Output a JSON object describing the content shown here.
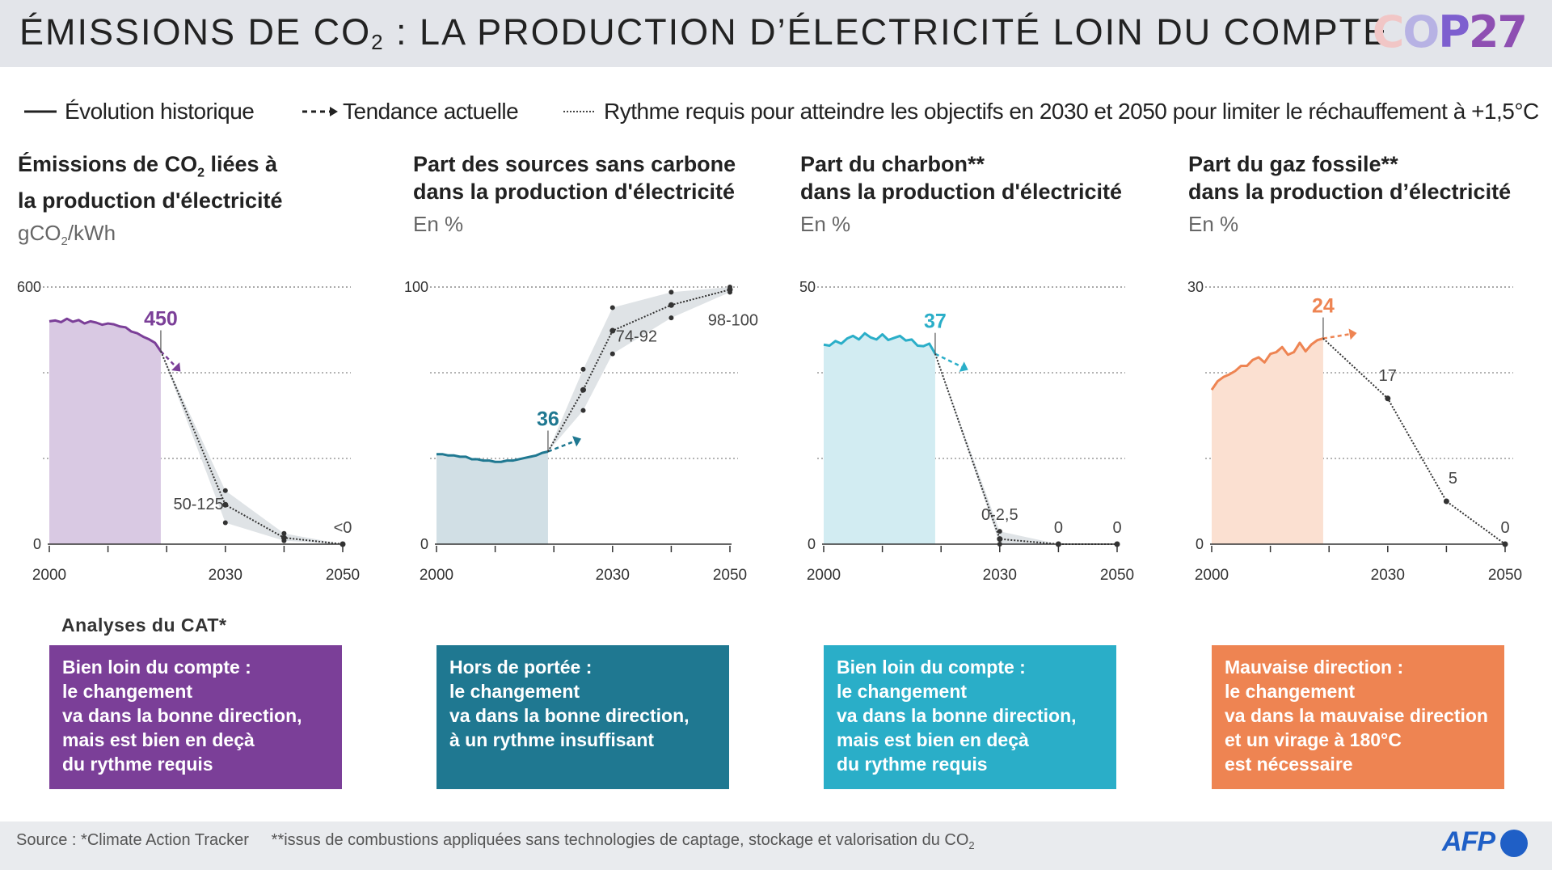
{
  "header": {
    "title_pre": "ÉMISSIONS DE CO",
    "title_sub": "2",
    "title_post": " : LA PRODUCTION D’ÉLECTRICITÉ LOIN DU COMPTE",
    "logo_cop": "COP",
    "logo_year": "27"
  },
  "legend": {
    "historic": "Évolution historique",
    "trend": "Tendance actuelle",
    "required": "Rythme requis pour atteindre les objectifs en 2030 et 2050 pour limiter le réchauffement à +1,5°C"
  },
  "panels": [
    {
      "title1_pre": "Émissions de CO",
      "title1_sub": "2",
      "title1_post": " liées à",
      "title2": "la production d'électricité",
      "unit_pre": "gCO",
      "unit_sub": "2",
      "unit_post": "/kWh"
    },
    {
      "title1_pre": "Part des sources sans carbone",
      "title1_sub": "",
      "title1_post": "",
      "title2": "dans la production d'électricité",
      "unit_pre": "En %",
      "unit_sub": "",
      "unit_post": ""
    },
    {
      "title1_pre": "Part du charbon**",
      "title1_sub": "",
      "title1_post": "",
      "title2": "dans la production d'électricité",
      "unit_pre": "En %",
      "unit_sub": "",
      "unit_post": ""
    },
    {
      "title1_pre": "Part du gaz fossile**",
      "title1_sub": "",
      "title1_post": "",
      "title2": "dans la production d’électricité",
      "unit_pre": "En %",
      "unit_sub": "",
      "unit_post": ""
    }
  ],
  "chart_data": [
    {
      "type": "area",
      "color": "#7b3f98",
      "fill": "#d9c9e3",
      "ylim": [
        0,
        600
      ],
      "yticks": [
        0,
        600
      ],
      "xlim": [
        2000,
        2050
      ],
      "xticks": [
        2000,
        2030,
        2050
      ],
      "historic": {
        "x": [
          2000,
          2001,
          2002,
          2003,
          2004,
          2005,
          2006,
          2007,
          2008,
          2009,
          2010,
          2011,
          2012,
          2013,
          2014,
          2015,
          2016,
          2017,
          2018,
          2019
        ],
        "y": [
          520,
          522,
          518,
          526,
          519,
          523,
          515,
          520,
          517,
          512,
          515,
          513,
          508,
          506,
          496,
          492,
          484,
          478,
          470,
          450
        ]
      },
      "current_value": "450",
      "trend_end": {
        "x": 2021.5,
        "y": 415
      },
      "required": {
        "x": [
          2019,
          2030,
          2040,
          2050
        ],
        "y": [
          450,
          92,
          15,
          0
        ]
      },
      "band": {
        "x": [
          2019,
          2030,
          2040,
          2050
        ],
        "low": [
          450,
          50,
          8,
          0
        ],
        "high": [
          450,
          125,
          25,
          0
        ]
      },
      "labels": [
        {
          "text": "50-125",
          "x": 2030,
          "y": 85
        },
        {
          "text": "<0",
          "x": 2050,
          "y": 0
        }
      ]
    },
    {
      "type": "area",
      "color": "#1f7891",
      "fill": "#d1dfe5",
      "ylim": [
        0,
        100
      ],
      "yticks": [
        0,
        100
      ],
      "xlim": [
        2000,
        2050
      ],
      "xticks": [
        2000,
        2030,
        2050
      ],
      "historic": {
        "x": [
          2000,
          2001,
          2002,
          2003,
          2004,
          2005,
          2006,
          2007,
          2008,
          2009,
          2010,
          2011,
          2012,
          2013,
          2014,
          2015,
          2016,
          2017,
          2018,
          2019
        ],
        "y": [
          35,
          35,
          34.5,
          34.5,
          34,
          34,
          33,
          33,
          32.5,
          32.5,
          32,
          32,
          32.5,
          32.5,
          33,
          33.5,
          34,
          34.5,
          35.5,
          36
        ]
      },
      "current_value": "36",
      "trend_end": {
        "x": 2023.5,
        "y": 40
      },
      "required": {
        "x": [
          2019,
          2025,
          2030,
          2040,
          2050
        ],
        "y": [
          36,
          60,
          83,
          93,
          99
        ]
      },
      "band": {
        "x": [
          2019,
          2025,
          2030,
          2040,
          2050
        ],
        "low": [
          36,
          52,
          74,
          88,
          98
        ],
        "high": [
          36,
          68,
          92,
          98,
          100
        ]
      },
      "labels": [
        {
          "text": "74-92",
          "x": 2030,
          "y": 80
        },
        {
          "text": "98-100",
          "x": 2050,
          "y": 92
        }
      ]
    },
    {
      "type": "area",
      "color": "#2aaec8",
      "fill": "#d2ecf2",
      "ylim": [
        0,
        50
      ],
      "yticks": [
        0,
        50
      ],
      "xlim": [
        2000,
        2050
      ],
      "xticks": [
        2000,
        2030,
        2050
      ],
      "historic": {
        "x": [
          2000,
          2001,
          2002,
          2003,
          2004,
          2005,
          2006,
          2007,
          2008,
          2009,
          2010,
          2011,
          2012,
          2013,
          2014,
          2015,
          2016,
          2017,
          2018,
          2019
        ],
        "y": [
          38.8,
          38.6,
          39.5,
          39,
          40,
          40.5,
          39.8,
          41,
          40.2,
          39.8,
          40.8,
          39.7,
          40.1,
          40.5,
          39.6,
          39.8,
          38.6,
          38.5,
          39,
          37
        ]
      },
      "current_value": "37",
      "trend_end": {
        "x": 2023.5,
        "y": 34.5
      },
      "required": {
        "x": [
          2019,
          2030,
          2040,
          2050
        ],
        "y": [
          37,
          1,
          0,
          0
        ]
      },
      "band": {
        "x": [
          2019,
          2030,
          2040,
          2050
        ],
        "low": [
          37,
          0,
          0,
          0
        ],
        "high": [
          37,
          2.5,
          0,
          0
        ]
      },
      "labels": [
        {
          "text": "0-2,5",
          "x": 2030,
          "y": 2.5
        },
        {
          "text": "0",
          "x": 2040,
          "y": 0
        },
        {
          "text": "0",
          "x": 2050,
          "y": 0
        }
      ]
    },
    {
      "type": "area",
      "color": "#ee8452",
      "fill": "#fbe0d1",
      "ylim": [
        0,
        30
      ],
      "yticks": [
        0,
        30
      ],
      "xlim": [
        2000,
        2050
      ],
      "xticks": [
        2000,
        2030,
        2050
      ],
      "historic": {
        "x": [
          2000,
          2001,
          2002,
          2003,
          2004,
          2005,
          2006,
          2007,
          2008,
          2009,
          2010,
          2011,
          2012,
          2013,
          2014,
          2015,
          2016,
          2017,
          2018,
          2019
        ],
        "y": [
          18,
          19,
          19.5,
          19.8,
          20.2,
          20.8,
          20.8,
          21.5,
          21.8,
          21.2,
          22.2,
          22.4,
          23,
          22.1,
          22.4,
          23.5,
          22.5,
          23.3,
          23.8,
          24
        ]
      },
      "current_value": "24",
      "trend_end": {
        "x": 2023.5,
        "y": 24.5
      },
      "required": {
        "x": [
          2019,
          2030,
          2040,
          2050
        ],
        "y": [
          24,
          17,
          5,
          0
        ]
      },
      "band": null,
      "labels": [
        {
          "text": "17",
          "x": 2030,
          "y": 17
        },
        {
          "text": "5",
          "x": 2040,
          "y": 5
        },
        {
          "text": "0",
          "x": 2050,
          "y": 0
        }
      ]
    }
  ],
  "analyses": {
    "label": "Analyses du CAT*",
    "boxes": [
      {
        "color": "#7b3f98",
        "lines": [
          "Bien loin du compte :",
          "le changement",
          "va dans la bonne direction,",
          "mais est bien en deçà",
          "du rythme requis"
        ]
      },
      {
        "color": "#1f7891",
        "lines": [
          "Hors de portée :",
          "le changement",
          "va dans la bonne direction,",
          "à un rythme insuffisant"
        ]
      },
      {
        "color": "#2aaec8",
        "lines": [
          "Bien loin du compte :",
          "le changement",
          "va dans la bonne direction,",
          "mais est bien en deçà",
          "du rythme requis"
        ]
      },
      {
        "color": "#ee8452",
        "lines": [
          "Mauvaise direction :",
          "le changement",
          "va dans la mauvaise direction",
          "et un virage à 180°C",
          "est nécessaire"
        ]
      }
    ]
  },
  "footer": {
    "source_pre": "Source : *Climate Action Tracker     **issus de combustions appliquées sans technologies de captage, stockage et valorisation du CO",
    "source_sub": "2",
    "logo": "AFP"
  }
}
